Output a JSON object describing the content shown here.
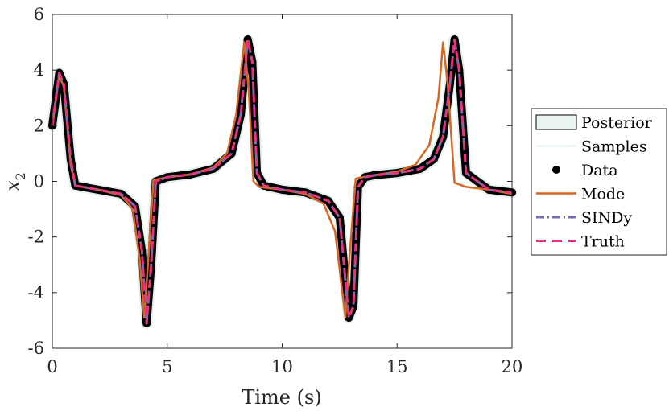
{
  "chart_data": {
    "type": "line",
    "title": "",
    "xlabel": "Time (s)",
    "ylabel": "x_2",
    "ylabel_main": "x",
    "ylabel_sub": "2",
    "xlim": [
      0,
      20
    ],
    "ylim": [
      -6,
      6
    ],
    "xticks": [
      0,
      5,
      10,
      15,
      20
    ],
    "xtick_labels": [
      "0",
      "5",
      "10",
      "15",
      "20"
    ],
    "yticks": [
      -6,
      -4,
      -2,
      0,
      2,
      4,
      6
    ],
    "ytick_labels": [
      "-6",
      "-4",
      "-2",
      "0",
      "2",
      "4",
      "6"
    ],
    "grid": false,
    "legend_position": "outside-right",
    "series": [
      {
        "name": "Posterior",
        "style": "band",
        "color": "#e3f0ee",
        "x": [
          0,
          0.3,
          0.5,
          0.8,
          1.0,
          2.0,
          3.0,
          3.6,
          3.9,
          4.1,
          4.3,
          4.5,
          5.0,
          6.0,
          7.0,
          7.8,
          8.2,
          8.5,
          8.7,
          8.9,
          9.2,
          10.0,
          11.0,
          12.0,
          12.5,
          12.9,
          13.1,
          13.3,
          13.6,
          14.0,
          15.0,
          16.0,
          16.6,
          17.0,
          17.3,
          17.5,
          17.7,
          18.0,
          19.0,
          20.0
        ],
        "y": [
          2.0,
          3.9,
          3.5,
          0.8,
          -0.15,
          -0.3,
          -0.45,
          -0.9,
          -2.5,
          -5.1,
          -3.0,
          0.0,
          0.15,
          0.25,
          0.45,
          1.0,
          2.4,
          5.1,
          4.3,
          0.3,
          -0.15,
          -0.3,
          -0.4,
          -0.7,
          -1.3,
          -4.9,
          -4.5,
          -0.2,
          0.15,
          0.22,
          0.3,
          0.45,
          0.8,
          1.6,
          3.5,
          5.1,
          4.0,
          0.3,
          -0.3,
          -0.4
        ]
      },
      {
        "name": "Samples",
        "style": "thin-line",
        "color": "#d7ecea",
        "x": [
          0,
          0.3,
          0.5,
          0.8,
          1.0,
          2.0,
          3.0,
          3.6,
          3.9,
          4.1,
          4.3,
          4.5,
          5.0,
          6.0,
          7.0,
          7.8,
          8.2,
          8.5,
          8.7,
          8.9,
          9.2,
          10.0,
          11.0,
          12.0,
          12.5,
          12.9,
          13.1,
          13.3,
          13.6,
          14.0,
          15.0,
          16.0,
          16.6,
          17.0,
          17.3,
          17.5,
          17.7,
          18.0,
          19.0,
          20.0
        ],
        "y": [
          2.0,
          3.9,
          3.5,
          0.8,
          -0.15,
          -0.3,
          -0.45,
          -0.9,
          -2.5,
          -5.1,
          -3.0,
          0.0,
          0.15,
          0.25,
          0.45,
          1.0,
          2.4,
          5.1,
          4.3,
          0.3,
          -0.15,
          -0.3,
          -0.4,
          -0.7,
          -1.3,
          -4.9,
          -4.5,
          -0.2,
          0.15,
          0.22,
          0.3,
          0.45,
          0.8,
          1.6,
          3.5,
          5.1,
          4.0,
          0.3,
          -0.3,
          -0.4
        ]
      },
      {
        "name": "Data",
        "style": "dots",
        "color": "#000000",
        "x": [
          0,
          0.3,
          0.5,
          0.8,
          1.0,
          2.0,
          3.0,
          3.6,
          3.9,
          4.1,
          4.3,
          4.5,
          5.0,
          6.0,
          7.0,
          7.8,
          8.2,
          8.5,
          8.7,
          8.9,
          9.2,
          10.0,
          11.0,
          12.0,
          12.5,
          12.9,
          13.1,
          13.3,
          13.6,
          14.0,
          15.0,
          16.0,
          16.6,
          17.0,
          17.3,
          17.5,
          17.7,
          18.0,
          19.0,
          20.0
        ],
        "y": [
          2.0,
          3.9,
          3.5,
          0.8,
          -0.15,
          -0.3,
          -0.45,
          -0.9,
          -2.5,
          -5.1,
          -3.0,
          0.0,
          0.15,
          0.25,
          0.45,
          1.0,
          2.4,
          5.1,
          4.3,
          0.3,
          -0.15,
          -0.3,
          -0.4,
          -0.7,
          -1.3,
          -4.9,
          -4.5,
          -0.2,
          0.15,
          0.22,
          0.3,
          0.45,
          0.8,
          1.6,
          3.5,
          5.1,
          4.0,
          0.3,
          -0.3,
          -0.4
        ]
      },
      {
        "name": "Mode",
        "style": "solid",
        "color": "#d9661f",
        "x": [
          0,
          0.3,
          0.5,
          0.8,
          1.0,
          2.0,
          3.0,
          3.5,
          3.8,
          4.0,
          4.2,
          4.4,
          5.0,
          6.0,
          7.0,
          7.6,
          8.0,
          8.35,
          8.55,
          8.75,
          9.0,
          10.0,
          11.0,
          11.8,
          12.3,
          12.75,
          12.95,
          13.2,
          13.5,
          14.0,
          15.0,
          15.8,
          16.4,
          16.8,
          17.0,
          17.2,
          17.5,
          18.0,
          19.0,
          20.0
        ],
        "y": [
          2.0,
          3.8,
          3.4,
          0.6,
          -0.15,
          -0.3,
          -0.5,
          -1.0,
          -2.8,
          -4.9,
          -2.5,
          0.05,
          0.15,
          0.25,
          0.5,
          1.0,
          2.4,
          5.0,
          3.2,
          0.0,
          -0.2,
          -0.3,
          -0.45,
          -0.8,
          -1.8,
          -4.9,
          -2.5,
          0.1,
          0.15,
          0.22,
          0.35,
          0.6,
          1.3,
          3.0,
          5.0,
          3.5,
          -0.05,
          -0.2,
          -0.3,
          -0.45
        ]
      },
      {
        "name": "SINDy",
        "style": "dashdot",
        "color": "#7b6bb0",
        "x": [
          0,
          0.3,
          0.5,
          0.8,
          1.0,
          2.0,
          3.0,
          3.6,
          3.9,
          4.1,
          4.3,
          4.5,
          5.0,
          6.0,
          7.0,
          7.8,
          8.2,
          8.5,
          8.7,
          8.9,
          9.2,
          10.0,
          11.0,
          12.0,
          12.5,
          12.9,
          13.1,
          13.3,
          13.6,
          14.0,
          15.0,
          16.0,
          16.6,
          17.0,
          17.3,
          17.5,
          17.7,
          18.0,
          19.0,
          20.0
        ],
        "y": [
          2.0,
          3.9,
          3.5,
          0.8,
          -0.15,
          -0.3,
          -0.45,
          -0.9,
          -2.5,
          -5.1,
          -3.0,
          0.0,
          0.15,
          0.25,
          0.45,
          1.0,
          2.4,
          5.1,
          4.3,
          0.3,
          -0.15,
          -0.3,
          -0.4,
          -0.7,
          -1.3,
          -4.9,
          -4.5,
          -0.2,
          0.15,
          0.22,
          0.3,
          0.45,
          0.8,
          1.6,
          3.5,
          5.1,
          4.0,
          0.3,
          -0.3,
          -0.4
        ]
      },
      {
        "name": "Truth",
        "style": "dashed",
        "color": "#e8327d",
        "x": [
          0,
          0.3,
          0.5,
          0.8,
          1.0,
          2.0,
          3.0,
          3.6,
          3.9,
          4.1,
          4.3,
          4.5,
          5.0,
          6.0,
          7.0,
          7.8,
          8.2,
          8.5,
          8.7,
          8.9,
          9.2,
          10.0,
          11.0,
          12.0,
          12.5,
          12.9,
          13.1,
          13.3,
          13.6,
          14.0,
          15.0,
          16.0,
          16.6,
          17.0,
          17.3,
          17.5,
          17.7,
          18.0,
          19.0,
          20.0
        ],
        "y": [
          2.0,
          3.9,
          3.5,
          0.8,
          -0.15,
          -0.3,
          -0.45,
          -0.9,
          -2.5,
          -5.1,
          -3.0,
          0.0,
          0.15,
          0.25,
          0.45,
          1.0,
          2.4,
          5.1,
          4.3,
          0.3,
          -0.15,
          -0.3,
          -0.4,
          -0.7,
          -1.3,
          -4.9,
          -4.5,
          -0.2,
          0.15,
          0.22,
          0.3,
          0.45,
          0.8,
          1.6,
          3.5,
          5.1,
          4.0,
          0.3,
          -0.3,
          -0.4
        ]
      }
    ],
    "legend": [
      {
        "label": "Posterior",
        "style": "patch",
        "color": "#eaf5f3",
        "edge": "#000000"
      },
      {
        "label": "Samples",
        "style": "thin-line",
        "color": "#d7ecea"
      },
      {
        "label": "Data",
        "style": "dot",
        "color": "#000000"
      },
      {
        "label": "Mode",
        "style": "solid",
        "color": "#d9661f"
      },
      {
        "label": "SINDy",
        "style": "dashdot",
        "color": "#7b6bb0"
      },
      {
        "label": "Truth",
        "style": "dashed",
        "color": "#e8327d"
      }
    ]
  }
}
